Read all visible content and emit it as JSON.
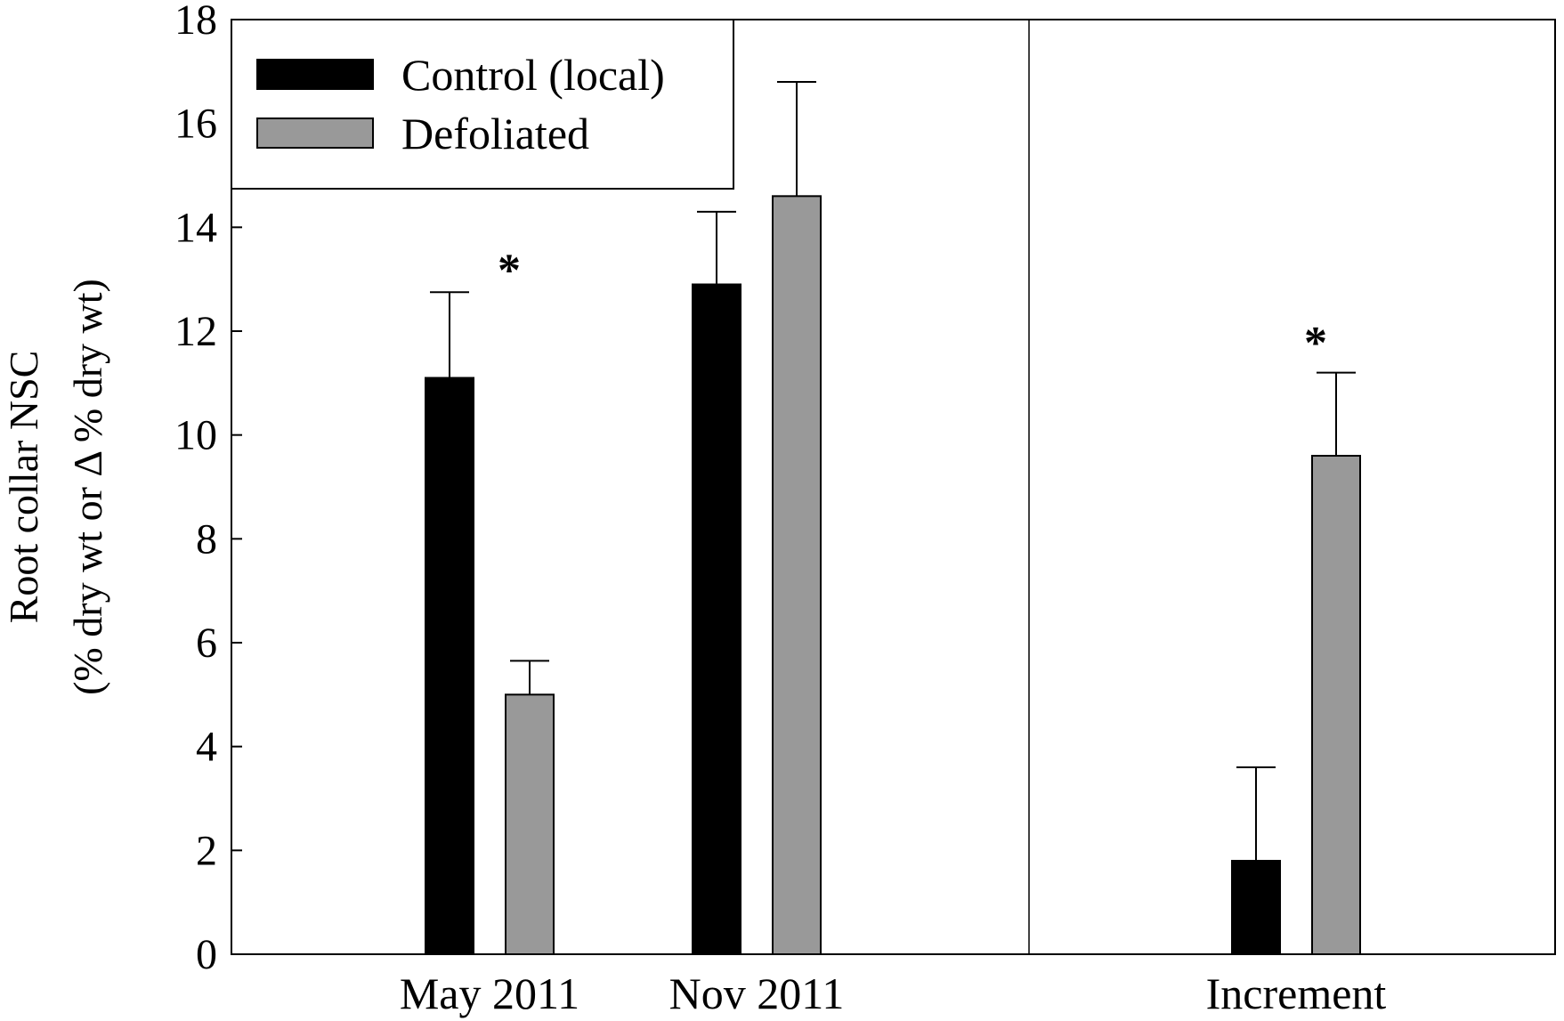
{
  "chart_data": {
    "type": "bar",
    "ylabel_line1": "Root collar NSC",
    "ylabel_line2": "(% dry wt or Δ % dry wt)",
    "ylim": [
      0,
      18
    ],
    "yticks": [
      0,
      2,
      4,
      6,
      8,
      10,
      12,
      14,
      16,
      18
    ],
    "categories": [
      "May 2011",
      "Nov 2011",
      "Increment"
    ],
    "series": [
      {
        "name": "Control (local)",
        "color": "#000000",
        "values": [
          11.1,
          12.9,
          1.8
        ],
        "errors": [
          1.65,
          1.4,
          1.8
        ]
      },
      {
        "name": "Defoliated",
        "color": "#999999",
        "values": [
          5.0,
          14.6,
          9.6
        ],
        "errors": [
          0.65,
          2.2,
          1.6
        ]
      }
    ],
    "annotations": [
      {
        "text": "*",
        "category": "May 2011",
        "y": 13.4
      },
      {
        "text": "*",
        "category": "Increment",
        "y": 12.0
      }
    ],
    "legend_position": "top-left",
    "grid": false,
    "panel_divider": "between Nov 2011 and Increment"
  }
}
